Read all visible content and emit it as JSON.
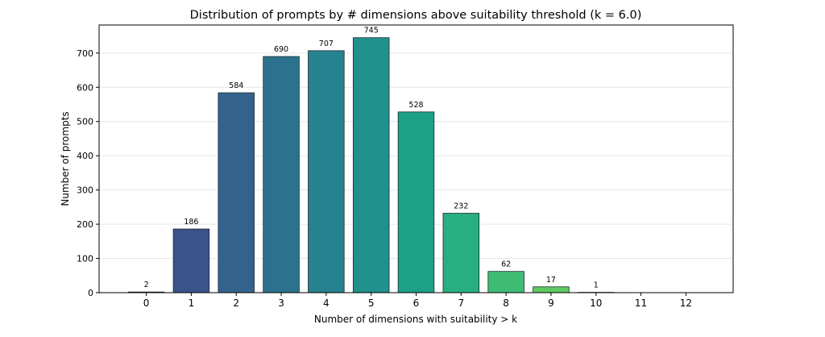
{
  "chart_data": {
    "type": "bar",
    "title": "Distribution of prompts by # dimensions above suitability threshold (k = 6.0)",
    "xlabel": "Number of dimensions with suitability > k",
    "ylabel": "Number of prompts",
    "categories": [
      "0",
      "1",
      "2",
      "3",
      "4",
      "5",
      "6",
      "7",
      "8",
      "9",
      "10",
      "11",
      "12"
    ],
    "values": [
      2,
      186,
      584,
      690,
      707,
      745,
      528,
      232,
      62,
      17,
      1,
      0,
      0
    ],
    "data_labels": [
      "2",
      "186",
      "584",
      "690",
      "707",
      "745",
      "528",
      "232",
      "62",
      "17",
      "1",
      "",
      ""
    ],
    "colors": [
      "#440154",
      "#3b528b",
      "#33638d",
      "#2c728e",
      "#26828e",
      "#21918c",
      "#1fa088",
      "#28ae80",
      "#3fbc73",
      "#5ec962",
      "#84d44b",
      "#addc30",
      "#d8e219"
    ],
    "yticks": [
      0,
      100,
      200,
      300,
      400,
      500,
      600,
      700
    ],
    "ylim": [
      0,
      782
    ],
    "xlim": [
      -1.05,
      13.05
    ],
    "grid": "horizontal",
    "edge_color": "#1a2a30"
  }
}
